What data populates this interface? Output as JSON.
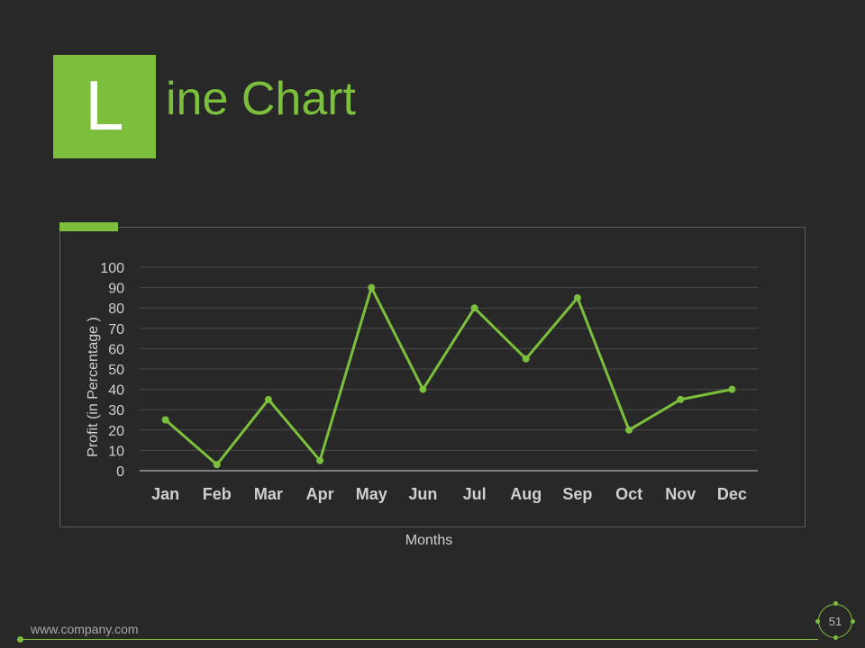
{
  "slide": {
    "title_letter": "L",
    "title_rest": "ine Chart",
    "footer_url": "www.company.com",
    "page_number": "51",
    "accent_color": "#7cbf3c"
  },
  "chart_data": {
    "type": "line",
    "categories": [
      "Jan",
      "Feb",
      "Mar",
      "Apr",
      "May",
      "Jun",
      "Jul",
      "Aug",
      "Sep",
      "Oct",
      "Nov",
      "Dec"
    ],
    "series": [
      {
        "values": [
          25,
          3,
          35,
          5,
          90,
          40,
          80,
          55,
          85,
          20,
          35,
          40
        ],
        "color": "#7cbf3c"
      }
    ],
    "xlabel": "Months",
    "ylabel": "Profit (in Percentage )",
    "ylim": [
      0,
      100
    ],
    "yticks": [
      0,
      10,
      20,
      30,
      40,
      50,
      60,
      70,
      80,
      90,
      100
    ],
    "grid": true,
    "legend": "none"
  }
}
